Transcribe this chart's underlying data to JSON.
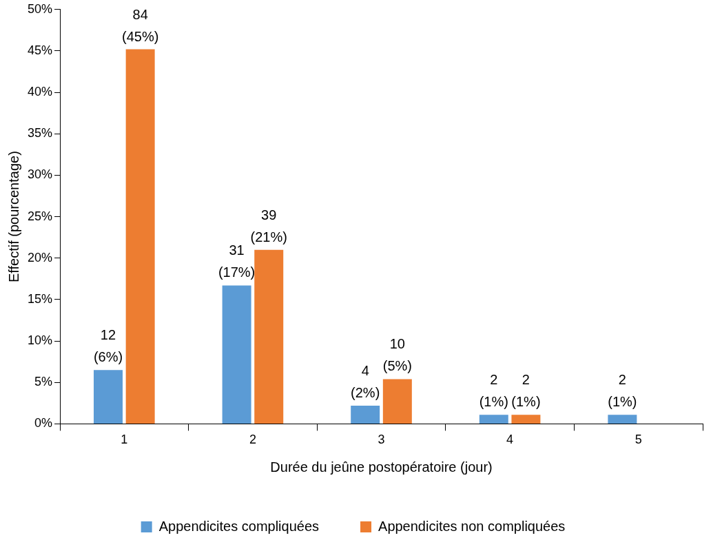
{
  "chart_data": {
    "type": "bar",
    "xlabel": "Durée du jeûne postopératoire (jour)",
    "ylabel": "Effectif (pourcentage)",
    "categories": [
      "1",
      "2",
      "3",
      "4",
      "5"
    ],
    "series": [
      {
        "name": "Appendicites compliquées",
        "color": "#5b9bd5",
        "values": [
          6.5,
          16.7,
          2.2,
          1.1,
          1.1
        ],
        "value_labels": [
          "12 (6%)",
          "31 (17%)",
          "4 (2%)",
          "2 (1%)",
          "2 (1%)"
        ]
      },
      {
        "name": "Appendicites non compliquées",
        "color": "#ed7d31",
        "values": [
          45.2,
          21.0,
          5.4,
          1.1,
          null
        ],
        "value_labels": [
          "84 (45%)",
          "39 (21%)",
          "10 (5%)",
          "2 (1%)",
          null
        ]
      }
    ],
    "ylim": [
      0,
      50
    ],
    "yticks": [
      {
        "value": 0,
        "label": "0%"
      },
      {
        "value": 5,
        "label": "5%"
      },
      {
        "value": 10,
        "label": "10%"
      },
      {
        "value": 15,
        "label": "15%"
      },
      {
        "value": 20,
        "label": "20%"
      },
      {
        "value": 25,
        "label": "25%"
      },
      {
        "value": 30,
        "label": "30%"
      },
      {
        "value": 35,
        "label": "35%"
      },
      {
        "value": 40,
        "label": "40%"
      },
      {
        "value": 45,
        "label": "45%"
      },
      {
        "value": 50,
        "label": "50%"
      }
    ],
    "grid": false,
    "legend": "bottom"
  }
}
